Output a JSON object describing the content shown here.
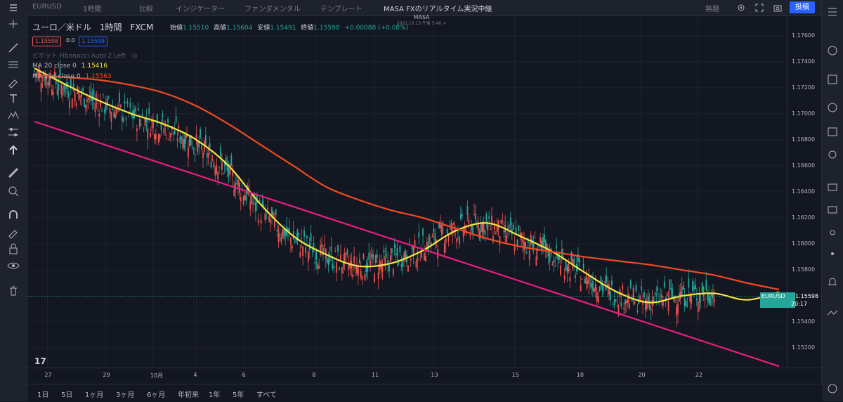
{
  "topbar": {
    "symbol": "EURUSD",
    "interval": "1時間",
    "compare": "比較",
    "indicators": "インジケーター",
    "fundamentals": "ファンダメンタル",
    "templates": "テンプレート",
    "layout_title": "MASA FXのリアルタイム実況中継",
    "unnamed": "無題",
    "publish": "投稿"
  },
  "center": {
    "title": "MASA",
    "subtitle": "2021.10.13 午後 5:40 >"
  },
  "legend": {
    "symbol_name": "ユーロ／米ドル",
    "interval": "1時間",
    "exchange": "FXCM",
    "open_label": "始値",
    "open": "1.15510",
    "high_label": "高値",
    "high": "1.15604",
    "low_label": "安値",
    "low": "1.15491",
    "close_label": "終値",
    "close": "1.15598",
    "change": "+0.00088 (+0.08%)",
    "sell_price": "1.15598",
    "spread": "0.0",
    "buy_price": "1.15598",
    "pivot": "ピボット",
    "pivot_name": "Fibonacci Auto 2 Left",
    "ma1_label": "MA 20 close 0",
    "ma1_value": "1.15416",
    "ma2_label": "MA 124 close 0",
    "ma2_value": "1.15563"
  },
  "current_price": {
    "symbol": "EURUSD",
    "price": "1.15598",
    "countdown": "20:17"
  },
  "price_axis": [
    "1.17600",
    "1.17400",
    "1.17200",
    "1.17000",
    "1.16800",
    "1.16600",
    "1.16400",
    "1.16200",
    "1.16000",
    "1.15800",
    "1.15400",
    "1.15200"
  ],
  "time_axis": [
    "27",
    "29",
    "10月",
    "4",
    "6",
    "8",
    "11",
    "13",
    "15",
    "18",
    "20",
    "22"
  ],
  "ranges": [
    "1日",
    "5日",
    "1ヶ月",
    "3ヶ月",
    "6ヶ月",
    "年初来",
    "1年",
    "5年",
    "すべて"
  ],
  "colors": {
    "background": "#131722",
    "up": "#26a69a",
    "down": "#ef5350",
    "ma20": "#f7e53b",
    "ma124": "#f04a22",
    "trendline": "#e91e80"
  },
  "chart_data": {
    "type": "line",
    "title": "",
    "xlabel": "",
    "ylabel": "",
    "ylim": [
      1.1505,
      1.1775
    ],
    "x_ticks": [
      "27",
      "29",
      "10月",
      "4",
      "6",
      "8",
      "11",
      "13",
      "15",
      "18",
      "20",
      "22"
    ],
    "series": [
      {
        "name": "MA 20 close 0",
        "color": "#f7e53b",
        "x": [
          0,
          3,
          6,
          9,
          12,
          15,
          18,
          21,
          24,
          27,
          30,
          33,
          36,
          39,
          42,
          45,
          48,
          51,
          54,
          57,
          60,
          63,
          66,
          69
        ],
        "y": [
          1.1735,
          1.1722,
          1.171,
          1.17,
          1.1692,
          1.168,
          1.166,
          1.163,
          1.1606,
          1.1592,
          1.1583,
          1.1585,
          1.1595,
          1.161,
          1.1616,
          1.1606,
          1.1594,
          1.1578,
          1.1563,
          1.1555,
          1.156,
          1.1562,
          1.1557,
          1.1563
        ]
      },
      {
        "name": "MA 124 close 0",
        "color": "#f04a22",
        "x": [
          0,
          3,
          6,
          9,
          12,
          15,
          18,
          21,
          24,
          27,
          30,
          33,
          36,
          39,
          42,
          45,
          48,
          51,
          54,
          57,
          60,
          63,
          66,
          69
        ],
        "y": [
          1.173,
          1.1728,
          1.1726,
          1.1722,
          1.1716,
          1.1706,
          1.1692,
          1.1676,
          1.166,
          1.1644,
          1.1634,
          1.1626,
          1.162,
          1.1612,
          1.1604,
          1.1598,
          1.1594,
          1.159,
          1.1587,
          1.1584,
          1.158,
          1.1576,
          1.157,
          1.1565
        ]
      },
      {
        "name": "trendline",
        "color": "#e91e80",
        "x": [
          0,
          69
        ],
        "y": [
          1.1694,
          1.1506
        ]
      }
    ]
  }
}
